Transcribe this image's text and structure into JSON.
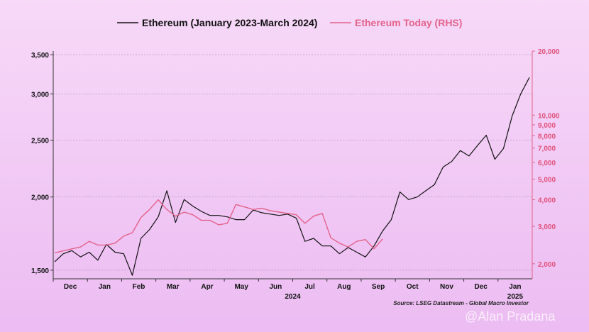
{
  "chart_data": {
    "type": "line",
    "title": "",
    "legend": [
      {
        "name": "Ethereum (January 2023-March 2024)",
        "color": "#111111"
      },
      {
        "name": "Ethereum Today (RHS)",
        "color": "#e3628a"
      }
    ],
    "legend_position": "top",
    "x_ticks": [
      "Dec",
      "Jan",
      "Feb",
      "Mar",
      "Apr",
      "May",
      "Jun",
      "Jul",
      "Aug",
      "Sep",
      "Oct",
      "Nov",
      "Dec",
      "Jan"
    ],
    "x_year_labels": [
      "2024",
      "2025"
    ],
    "y_left": {
      "scale": "log",
      "range": [
        1450,
        3550
      ],
      "ticks": [
        1500,
        2000,
        2500,
        3000,
        3500
      ],
      "tick_labels": [
        "1,500",
        "2,000",
        "2,500",
        "3,000",
        "3,500"
      ]
    },
    "y_right": {
      "scale": "log",
      "range": [
        1700,
        20000
      ],
      "ticks": [
        2000,
        3000,
        4000,
        5000,
        6000,
        7000,
        8000,
        9000,
        10000,
        20000
      ],
      "tick_labels": [
        "2,000",
        "3,000",
        "4,000",
        "5,000",
        "6,000",
        "7,000",
        "8,000",
        "9,000",
        "10,000",
        "20,000"
      ]
    },
    "grid": true,
    "series": [
      {
        "name": "Ethereum (January 2023-March 2024)",
        "axis": "left",
        "x": [
          "Dec 1",
          "Dec 8",
          "Dec 15",
          "Dec 22",
          "Jan 1",
          "Jan 8",
          "Jan 15",
          "Jan 22",
          "Feb 1",
          "Feb 8",
          "Feb 15",
          "Feb 22",
          "Mar 1",
          "Mar 8",
          "Mar 15",
          "Mar 22",
          "Apr 1",
          "Apr 8",
          "Apr 15",
          "Apr 22",
          "May 1",
          "May 8",
          "May 15",
          "May 22",
          "Jun 1",
          "Jun 8",
          "Jun 15",
          "Jun 22",
          "Jul 1",
          "Jul 8",
          "Jul 15",
          "Jul 22",
          "Aug 1",
          "Aug 8",
          "Aug 15",
          "Aug 22",
          "Sep 1",
          "Sep 8",
          "Sep 15",
          "Sep 22",
          "Oct 1",
          "Oct 8",
          "Oct 15",
          "Oct 22",
          "Nov 1",
          "Nov 8",
          "Nov 15",
          "Nov 22",
          "Dec 1",
          "Dec 8",
          "Dec 15",
          "Dec 22",
          "Jan 1",
          "Jan 8",
          "Jan 15",
          "Jan 22"
        ],
        "values": [
          1550,
          1600,
          1620,
          1580,
          1610,
          1560,
          1660,
          1610,
          1600,
          1470,
          1700,
          1760,
          1850,
          2050,
          1810,
          1980,
          1930,
          1890,
          1860,
          1860,
          1850,
          1830,
          1830,
          1900,
          1880,
          1870,
          1860,
          1870,
          1840,
          1680,
          1700,
          1650,
          1650,
          1600,
          1640,
          1610,
          1580,
          1650,
          1750,
          1830,
          2040,
          1980,
          2000,
          2050,
          2100,
          2250,
          2300,
          2400,
          2350,
          2450,
          2550,
          2320,
          2420,
          2750,
          3000,
          3200
        ]
      },
      {
        "name": "Ethereum Today (RHS)",
        "axis": "right",
        "x": [
          "Dec 1",
          "Dec 8",
          "Dec 15",
          "Dec 22",
          "Jan 1",
          "Jan 8",
          "Jan 15",
          "Jan 22",
          "Feb 1",
          "Feb 8",
          "Feb 15",
          "Feb 22",
          "Mar 1",
          "Mar 8",
          "Mar 15",
          "Mar 22",
          "Apr 1",
          "Apr 8",
          "Apr 15",
          "Apr 22",
          "May 1",
          "May 8",
          "May 15",
          "May 22",
          "Jun 1",
          "Jun 8",
          "Jun 15",
          "Jun 22",
          "Jul 1",
          "Jul 8",
          "Jul 15",
          "Jul 22",
          "Aug 1",
          "Aug 8",
          "Aug 15",
          "Aug 22",
          "Sep 1",
          "Sep 8",
          "Sep 15"
        ],
        "values": [
          2250,
          2300,
          2350,
          2400,
          2550,
          2450,
          2450,
          2500,
          2700,
          2800,
          3300,
          3600,
          4000,
          3600,
          3350,
          3500,
          3400,
          3200,
          3200,
          3050,
          3100,
          3800,
          3700,
          3600,
          3650,
          3550,
          3500,
          3450,
          3400,
          3100,
          3350,
          3450,
          2650,
          2500,
          2400,
          2550,
          2600,
          2350,
          2620
        ]
      }
    ],
    "source": "Source: LSEG Datastream - Global Macro Investor",
    "watermark": "@Alan Pradana"
  }
}
